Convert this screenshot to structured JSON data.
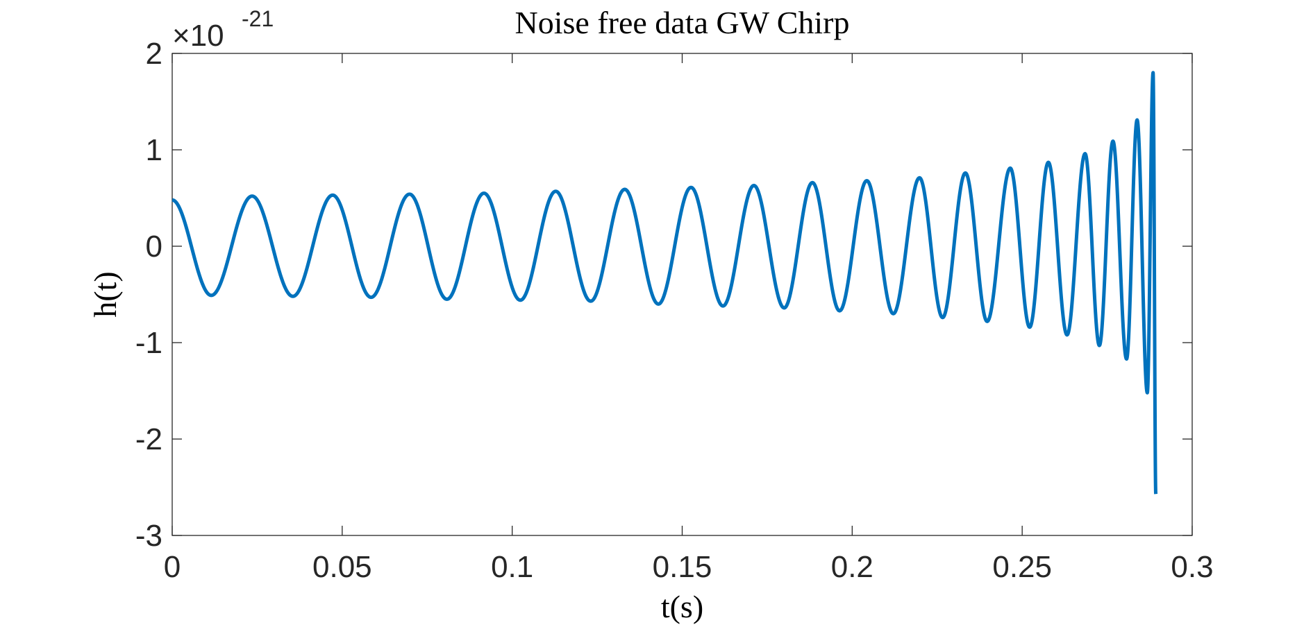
{
  "chart_data": {
    "type": "line",
    "title": "Noise free data GW Chirp",
    "xlabel": "t(s)",
    "ylabel": "h(t)",
    "xlim": [
      0,
      0.3
    ],
    "ylim": [
      -3,
      2
    ],
    "xticks": [
      0,
      0.05,
      0.1,
      0.15,
      0.2,
      0.25,
      0.3
    ],
    "xtick_labels": [
      "0",
      "0.05",
      "0.1",
      "0.15",
      "0.2",
      "0.25",
      "0.3"
    ],
    "yticks": [
      2,
      1,
      0,
      -1,
      -2,
      -3
    ],
    "ytick_labels": [
      "2",
      "1",
      "0",
      "-1",
      "-2",
      "-3"
    ],
    "y_multiplier": {
      "base": "×10",
      "exponent": "-21"
    },
    "grid": false,
    "series": [
      {
        "name": "h(t)",
        "color": "#0072BD",
        "extrema": [
          [
            0.0,
            0.48
          ],
          [
            0.0115,
            -0.51
          ],
          [
            0.0235,
            0.52
          ],
          [
            0.0355,
            -0.52
          ],
          [
            0.0472,
            0.53
          ],
          [
            0.0585,
            -0.53
          ],
          [
            0.0698,
            0.54
          ],
          [
            0.0808,
            -0.55
          ],
          [
            0.0917,
            0.55
          ],
          [
            0.1024,
            -0.56
          ],
          [
            0.1128,
            0.57
          ],
          [
            0.1231,
            -0.57
          ],
          [
            0.1331,
            0.59
          ],
          [
            0.143,
            -0.6
          ],
          [
            0.1526,
            0.61
          ],
          [
            0.162,
            -0.62
          ],
          [
            0.1711,
            0.63
          ],
          [
            0.18,
            -0.64
          ],
          [
            0.1883,
            0.66
          ],
          [
            0.1963,
            -0.67
          ],
          [
            0.2043,
            0.68
          ],
          [
            0.2121,
            -0.7
          ],
          [
            0.2198,
            0.71
          ],
          [
            0.2266,
            -0.74
          ],
          [
            0.2333,
            0.76
          ],
          [
            0.2397,
            -0.78
          ],
          [
            0.2465,
            0.81
          ],
          [
            0.2522,
            -0.84
          ],
          [
            0.2577,
            0.87
          ],
          [
            0.2632,
            -0.92
          ],
          [
            0.2685,
            0.96
          ],
          [
            0.2727,
            -1.03
          ],
          [
            0.2767,
            1.09
          ],
          [
            0.2807,
            -1.17
          ],
          [
            0.2838,
            1.31
          ],
          [
            0.2868,
            -1.52
          ],
          [
            0.2885,
            1.8
          ],
          [
            0.2893,
            -2.57
          ]
        ]
      }
    ]
  }
}
